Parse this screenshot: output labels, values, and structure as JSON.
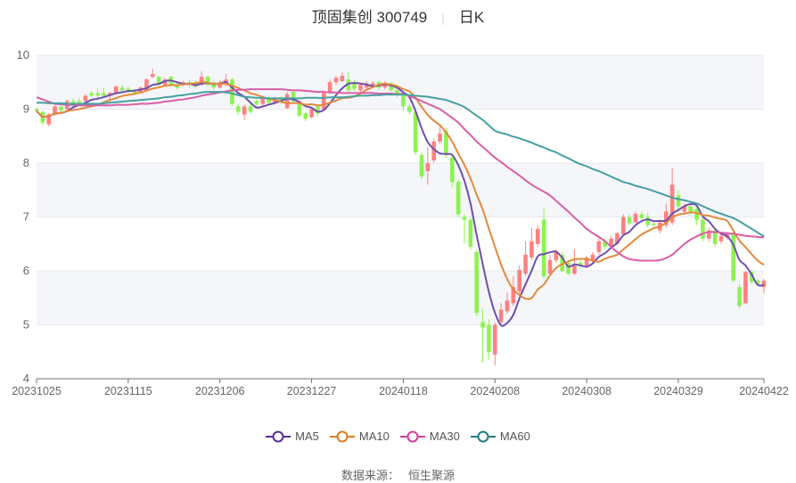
{
  "title": {
    "name": "顶固集创 300749",
    "period": "日K",
    "separator": "|"
  },
  "source": {
    "label": "数据来源：",
    "value": "恒生聚源"
  },
  "colors": {
    "up": "#ff7474",
    "down": "#80f23e",
    "MA5": "#6f4eae",
    "MA10": "#e3893c",
    "MA30": "#d95ea6",
    "MA60": "#47a0a0",
    "legend_MA5": "#5b2c9a",
    "legend_MA10": "#e07b1f",
    "legend_MA30": "#d63e9b",
    "legend_MA60": "#1f7f7f"
  },
  "chart_data": {
    "type": "candlestick",
    "ylim": [
      4,
      10
    ],
    "yticks": [
      "4",
      "5",
      "6",
      "7",
      "8",
      "9",
      "10"
    ],
    "grid": "split-area bands",
    "legend_position": "bottom",
    "xtick_labels": [
      "20231025",
      "20231115",
      "20231206",
      "20231227",
      "20240118",
      "20240208",
      "20240308",
      "20240329",
      "20240422"
    ],
    "categories": [
      "20231025",
      "20231026",
      "20231027",
      "20231030",
      "20231031",
      "20231101",
      "20231102",
      "20231103",
      "20231106",
      "20231107",
      "20231108",
      "20231109",
      "20231110",
      "20231113",
      "20231114",
      "20231115",
      "20231116",
      "20231117",
      "20231120",
      "20231121",
      "20231122",
      "20231123",
      "20231124",
      "20231127",
      "20231128",
      "20231129",
      "20231130",
      "20231201",
      "20231204",
      "20231205",
      "20231206",
      "20231207",
      "20231208",
      "20231211",
      "20231212",
      "20231213",
      "20231214",
      "20231215",
      "20231218",
      "20231219",
      "20231220",
      "20231221",
      "20231222",
      "20231225",
      "20231226",
      "20231227",
      "20231228",
      "20231229",
      "20240102",
      "20240103",
      "20240104",
      "20240105",
      "20240108",
      "20240109",
      "20240110",
      "20240111",
      "20240112",
      "20240115",
      "20240116",
      "20240117",
      "20240118",
      "20240119",
      "20240122",
      "20240123",
      "20240124",
      "20240125",
      "20240126",
      "20240129",
      "20240130",
      "20240131",
      "20240201",
      "20240202",
      "20240205",
      "20240206",
      "20240207",
      "20240208",
      "20240219",
      "20240220",
      "20240221",
      "20240222",
      "20240223",
      "20240226",
      "20240227",
      "20240228",
      "20240229",
      "20240301",
      "20240304",
      "20240305",
      "20240306",
      "20240307",
      "20240308",
      "20240311",
      "20240312",
      "20240313",
      "20240314",
      "20240315",
      "20240318",
      "20240319",
      "20240320",
      "20240321",
      "20240322",
      "20240325",
      "20240326",
      "20240327",
      "20240328",
      "20240329",
      "20240401",
      "20240402",
      "20240403",
      "20240408",
      "20240409",
      "20240410",
      "20240411",
      "20240412",
      "20240415",
      "20240416",
      "20240417",
      "20240418",
      "20240419",
      "20240422"
    ],
    "ohlc_order": [
      "open",
      "close",
      "low",
      "high"
    ],
    "ohlc": [
      [
        9.0,
        8.97,
        8.93,
        9.03
      ],
      [
        8.95,
        8.75,
        8.7,
        8.97
      ],
      [
        8.72,
        8.9,
        8.68,
        8.93
      ],
      [
        8.9,
        9.05,
        8.88,
        9.08
      ],
      [
        9.05,
        8.97,
        8.95,
        9.1
      ],
      [
        9.0,
        9.15,
        8.98,
        9.18
      ],
      [
        9.15,
        9.1,
        9.05,
        9.2
      ],
      [
        9.15,
        9.12,
        9.05,
        9.22
      ],
      [
        9.15,
        9.25,
        9.12,
        9.28
      ],
      [
        9.3,
        9.25,
        9.22,
        9.33
      ],
      [
        9.3,
        9.25,
        9.2,
        9.38
      ],
      [
        9.3,
        9.25,
        9.22,
        9.4
      ],
      [
        9.25,
        9.3,
        9.1,
        9.32
      ],
      [
        9.3,
        9.42,
        9.28,
        9.44
      ],
      [
        9.4,
        9.35,
        9.3,
        9.45
      ],
      [
        9.38,
        9.35,
        9.3,
        9.42
      ],
      [
        9.35,
        9.3,
        9.27,
        9.38
      ],
      [
        9.3,
        9.4,
        9.28,
        9.42
      ],
      [
        9.35,
        9.55,
        9.33,
        9.57
      ],
      [
        9.6,
        9.65,
        9.58,
        9.75
      ],
      [
        9.6,
        9.45,
        9.42,
        9.62
      ],
      [
        9.45,
        9.55,
        9.43,
        9.58
      ],
      [
        9.6,
        9.45,
        9.42,
        9.62
      ],
      [
        9.45,
        9.4,
        9.36,
        9.5
      ],
      [
        9.45,
        9.5,
        9.42,
        9.53
      ],
      [
        9.5,
        9.45,
        9.4,
        9.55
      ],
      [
        9.5,
        9.42,
        9.38,
        9.53
      ],
      [
        9.45,
        9.6,
        9.43,
        9.7
      ],
      [
        9.6,
        9.45,
        9.42,
        9.62
      ],
      [
        9.5,
        9.4,
        9.36,
        9.53
      ],
      [
        9.4,
        9.5,
        9.38,
        9.53
      ],
      [
        9.45,
        9.55,
        9.43,
        9.65
      ],
      [
        9.55,
        9.1,
        9.05,
        9.58
      ],
      [
        9.05,
        8.95,
        8.9,
        9.1
      ],
      [
        8.9,
        9.05,
        8.8,
        9.08
      ],
      [
        9.05,
        8.95,
        8.92,
        9.1
      ],
      [
        9.15,
        9.1,
        9.05,
        9.18
      ],
      [
        9.1,
        9.2,
        9.07,
        9.22
      ],
      [
        9.2,
        9.12,
        9.08,
        9.24
      ],
      [
        9.12,
        9.2,
        9.1,
        9.23
      ],
      [
        9.2,
        9.15,
        9.1,
        9.24
      ],
      [
        9.02,
        9.28,
        9.0,
        9.32
      ],
      [
        9.32,
        9.15,
        9.12,
        9.36
      ],
      [
        9.1,
        8.88,
        8.85,
        9.12
      ],
      [
        8.92,
        8.82,
        8.78,
        8.95
      ],
      [
        8.85,
        9.0,
        8.83,
        9.03
      ],
      [
        9.05,
        8.92,
        8.86,
        9.08
      ],
      [
        9.0,
        9.3,
        8.98,
        9.35
      ],
      [
        9.3,
        9.5,
        9.28,
        9.55
      ],
      [
        9.5,
        9.58,
        9.45,
        9.62
      ],
      [
        9.52,
        9.62,
        9.5,
        9.68
      ],
      [
        9.55,
        9.35,
        9.32,
        9.7
      ],
      [
        9.5,
        9.38,
        9.33,
        9.55
      ],
      [
        9.35,
        9.45,
        9.32,
        9.48
      ],
      [
        9.4,
        9.48,
        9.37,
        9.52
      ],
      [
        9.42,
        9.48,
        9.4,
        9.52
      ],
      [
        9.5,
        9.4,
        9.36,
        9.53
      ],
      [
        9.4,
        9.48,
        9.37,
        9.52
      ],
      [
        9.48,
        9.35,
        9.32,
        9.5
      ],
      [
        9.35,
        9.28,
        9.22,
        9.4
      ],
      [
        9.28,
        9.05,
        8.98,
        9.3
      ],
      [
        9.05,
        8.95,
        8.9,
        9.1
      ],
      [
        8.95,
        8.2,
        8.15,
        9.0
      ],
      [
        8.15,
        7.75,
        7.7,
        8.2
      ],
      [
        7.85,
        8.0,
        7.6,
        8.3
      ],
      [
        8.05,
        8.4,
        8.0,
        8.45
      ],
      [
        8.4,
        8.55,
        8.35,
        8.7
      ],
      [
        8.6,
        8.15,
        8.1,
        8.65
      ],
      [
        8.1,
        7.65,
        7.55,
        8.15
      ],
      [
        7.65,
        7.05,
        7.0,
        7.7
      ],
      [
        7.0,
        6.95,
        6.5,
        7.05
      ],
      [
        6.95,
        6.45,
        6.4,
        7.0
      ],
      [
        6.35,
        5.22,
        5.15,
        6.4
      ],
      [
        5.05,
        4.95,
        4.3,
        5.3
      ],
      [
        5.0,
        4.5,
        4.35,
        5.1
      ],
      [
        4.45,
        5.0,
        4.25,
        5.05
      ],
      [
        5.05,
        5.28,
        5.0,
        5.4
      ],
      [
        5.25,
        5.45,
        5.2,
        5.6
      ],
      [
        5.4,
        5.7,
        5.35,
        5.9
      ],
      [
        5.62,
        6.02,
        5.58,
        6.1
      ],
      [
        5.95,
        6.3,
        5.9,
        6.55
      ],
      [
        6.25,
        6.55,
        6.2,
        6.8
      ],
      [
        6.5,
        6.78,
        6.45,
        6.85
      ],
      [
        6.95,
        5.9,
        5.85,
        7.15
      ],
      [
        5.95,
        6.2,
        5.92,
        6.3
      ],
      [
        6.2,
        6.35,
        6.15,
        6.4
      ],
      [
        6.3,
        6.0,
        5.98,
        6.35
      ],
      [
        6.15,
        5.95,
        5.92,
        6.2
      ],
      [
        5.95,
        6.1,
        5.92,
        6.4
      ],
      [
        6.15,
        6.1,
        6.05,
        6.2
      ],
      [
        6.1,
        6.25,
        6.05,
        6.28
      ],
      [
        6.2,
        6.3,
        6.15,
        6.35
      ],
      [
        6.35,
        6.55,
        6.3,
        6.6
      ],
      [
        6.55,
        6.45,
        6.4,
        6.62
      ],
      [
        6.45,
        6.6,
        6.42,
        6.65
      ],
      [
        6.5,
        6.7,
        6.48,
        6.72
      ],
      [
        6.68,
        7.0,
        6.65,
        7.05
      ],
      [
        7.0,
        6.88,
        6.85,
        7.05
      ],
      [
        6.9,
        7.06,
        6.88,
        7.1
      ],
      [
        7.05,
        6.98,
        6.95,
        7.1
      ],
      [
        7.0,
        6.85,
        6.8,
        7.08
      ],
      [
        6.88,
        6.85,
        6.8,
        6.9
      ],
      [
        6.75,
        6.9,
        6.7,
        6.95
      ],
      [
        6.85,
        7.1,
        6.8,
        7.25
      ],
      [
        6.9,
        7.6,
        6.85,
        7.9
      ],
      [
        7.4,
        7.2,
        7.15,
        7.5
      ],
      [
        7.1,
        7.2,
        7.05,
        7.25
      ],
      [
        7.2,
        7.1,
        7.05,
        7.22
      ],
      [
        7.15,
        6.95,
        6.85,
        7.18
      ],
      [
        6.95,
        6.6,
        6.55,
        7.0
      ],
      [
        6.6,
        6.75,
        6.55,
        6.8
      ],
      [
        6.75,
        6.5,
        6.45,
        6.78
      ],
      [
        6.55,
        6.65,
        6.5,
        6.7
      ],
      [
        6.62,
        6.7,
        6.58,
        6.72
      ],
      [
        6.7,
        5.82,
        5.78,
        6.72
      ],
      [
        5.7,
        5.35,
        5.3,
        5.75
      ],
      [
        5.4,
        5.98,
        5.38,
        6.0
      ],
      [
        5.98,
        5.8,
        5.75,
        6.02
      ],
      [
        5.82,
        5.75,
        5.72,
        5.85
      ],
      [
        5.7,
        5.82,
        5.58,
        5.85
      ]
    ],
    "series": [
      {
        "name": "MA5",
        "window": 5
      },
      {
        "name": "MA10",
        "window": 10
      },
      {
        "name": "MA30",
        "values": [
          9.22,
          9.18,
          9.14,
          9.1,
          9.09,
          9.08,
          9.08,
          9.07,
          9.07,
          9.07,
          9.07,
          9.07,
          9.07,
          9.08,
          9.08,
          9.08,
          9.09,
          9.1,
          9.1,
          9.11,
          9.12,
          9.14,
          9.15,
          9.17,
          9.18,
          9.2,
          9.22,
          9.25,
          9.27,
          9.29,
          9.31,
          9.33,
          9.35,
          9.36,
          9.36,
          9.37,
          9.37,
          9.37,
          9.37,
          9.37,
          9.37,
          9.36,
          9.35,
          9.35,
          9.34,
          9.33,
          9.32,
          9.32,
          9.31,
          9.31,
          9.3,
          9.3,
          9.3,
          9.3,
          9.3,
          9.3,
          9.29,
          9.29,
          9.29,
          9.28,
          9.28,
          9.24,
          9.2,
          9.15,
          9.1,
          9.05,
          9.0,
          8.92,
          8.84,
          8.75,
          8.63,
          8.52,
          8.4,
          8.3,
          8.2,
          8.1,
          8.02,
          7.93,
          7.85,
          7.77,
          7.68,
          7.6,
          7.53,
          7.47,
          7.4,
          7.3,
          7.2,
          7.1,
          6.99,
          6.89,
          6.78,
          6.7,
          6.63,
          6.55,
          6.45,
          6.35,
          6.27,
          6.22,
          6.2,
          6.19,
          6.19,
          6.19,
          6.2,
          6.24,
          6.3,
          6.4,
          6.5,
          6.58,
          6.64,
          6.69,
          6.72,
          6.72,
          6.71,
          6.7,
          6.69,
          6.67,
          6.65,
          6.64,
          6.63,
          6.62
        ]
      },
      {
        "name": "MA60",
        "values": [
          9.12,
          9.12,
          9.11,
          9.11,
          9.11,
          9.1,
          9.1,
          9.1,
          9.1,
          9.1,
          9.1,
          9.11,
          9.12,
          9.13,
          9.14,
          9.15,
          9.16,
          9.17,
          9.18,
          9.19,
          9.2,
          9.22,
          9.23,
          9.25,
          9.26,
          9.28,
          9.29,
          9.31,
          9.32,
          9.32,
          9.32,
          9.31,
          9.29,
          9.26,
          9.23,
          9.22,
          9.21,
          9.21,
          9.2,
          9.2,
          9.2,
          9.2,
          9.2,
          9.2,
          9.21,
          9.21,
          9.21,
          9.21,
          9.22,
          9.22,
          9.22,
          9.23,
          9.24,
          9.25,
          9.25,
          9.26,
          9.26,
          9.27,
          9.27,
          9.27,
          9.27,
          9.26,
          9.25,
          9.24,
          9.23,
          9.21,
          9.19,
          9.17,
          9.13,
          9.09,
          9.04,
          8.96,
          8.88,
          8.8,
          8.7,
          8.6,
          8.56,
          8.53,
          8.49,
          8.46,
          8.42,
          8.38,
          8.33,
          8.29,
          8.24,
          8.2,
          8.14,
          8.09,
          8.03,
          7.98,
          7.94,
          7.89,
          7.85,
          7.8,
          7.75,
          7.7,
          7.65,
          7.62,
          7.58,
          7.55,
          7.52,
          7.48,
          7.44,
          7.4,
          7.36,
          7.33,
          7.31,
          7.28,
          7.25,
          7.2,
          7.15,
          7.1,
          7.06,
          7.02,
          6.98,
          6.92,
          6.85,
          6.78,
          6.71,
          6.64
        ]
      }
    ]
  }
}
